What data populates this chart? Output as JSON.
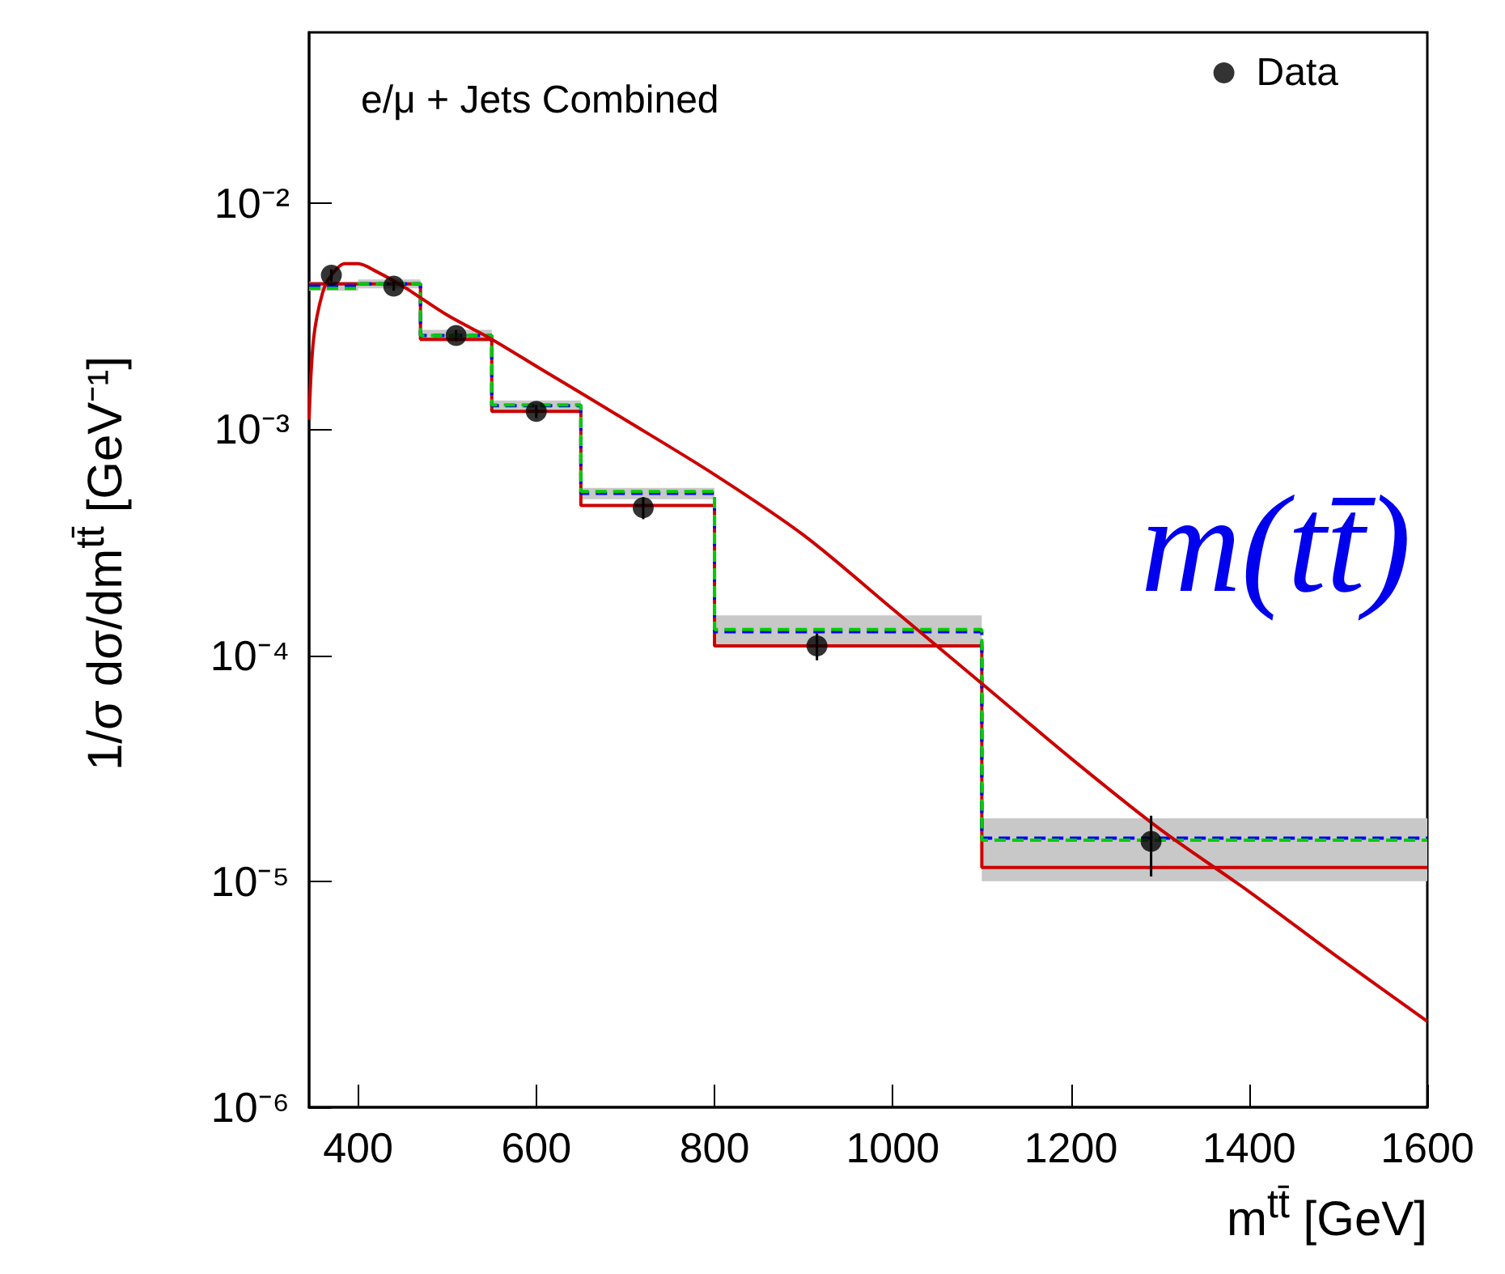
{
  "chart_data": {
    "type": "step",
    "xlabel": "m$^{tt̄}$ [GeV]",
    "ylabel": "1/σ dσ/dm$^{tt̄}$ [GeV⁻¹]",
    "annotations": [
      "e/μ + Jets Combined",
      "m(tt̄)"
    ],
    "log": "y",
    "grid": false,
    "legend": "top right",
    "xlim": [
      345,
      1600
    ],
    "xticks": [
      400,
      600,
      800,
      1000,
      1200,
      1400,
      1600
    ],
    "ylim": [
      1e-06,
      0.057
    ],
    "yticks": [
      {
        "value": 1e-06,
        "label": "10⁻⁶"
      },
      {
        "value": 1e-05,
        "label": "10⁻⁵"
      },
      {
        "value": 0.0001,
        "label": "10⁻⁴"
      },
      {
        "value": 0.001,
        "label": "10⁻³"
      },
      {
        "value": 0.01,
        "label": "10⁻²"
      }
    ],
    "series": [
      {
        "color": "#cc0000",
        "line_style": "solid",
        "x": [
          345,
          400,
          470,
          550,
          650,
          800,
          1100,
          1600
        ],
        "values": [
          0.0044,
          0.0044,
          0.0025,
          0.0012,
          0.00046,
          0.00011,
          1.15e-05,
          1.15e-05
        ]
      },
      {
        "color": "#0000ff",
        "line_style": "dashed",
        "x": [
          345,
          400,
          470,
          550,
          650,
          800,
          1100,
          1600
        ],
        "values": [
          0.0043,
          0.0044,
          0.0026,
          0.00127,
          0.00052,
          0.000127,
          1.55e-05,
          1.55e-05
        ],
        "lower": [
          0.0041,
          0.0042,
          0.00245,
          0.0012,
          0.00049,
          0.00011,
          1e-05,
          1e-05
        ],
        "upper": [
          0.0045,
          0.0046,
          0.00275,
          0.00134,
          0.00055,
          0.00015,
          1.9e-05,
          1.9e-05
        ]
      },
      {
        "color": "#00cc00",
        "line_style": "dashed",
        "x": [
          345,
          400,
          470,
          550,
          650,
          800,
          1100,
          1600
        ],
        "values": [
          0.0042,
          0.0044,
          0.0026,
          0.00128,
          0.00053,
          0.00013,
          1.52e-05,
          1.52e-05
        ]
      },
      {
        "type": "line",
        "color": "#cc0000",
        "line_style": "solid",
        "x": [
          345,
          350,
          360,
          370,
          385,
          400,
          420,
          450,
          500,
          550,
          600,
          700,
          800,
          900,
          1000,
          1100,
          1200,
          1300,
          1400,
          1500,
          1600
        ],
        "values": [
          0.0011,
          0.0025,
          0.004,
          0.0048,
          0.0054,
          0.0054,
          0.005,
          0.0043,
          0.0032,
          0.0025,
          0.0019,
          0.0011,
          0.00063,
          0.00034,
          0.00016,
          7.5e-05,
          3.5e-05,
          1.7e-05,
          9e-06,
          4.6e-06,
          2.4e-06
        ]
      },
      {
        "type": "scatter",
        "name": "Data",
        "color": "#000000",
        "marker": "circle",
        "x": [
          370,
          440,
          510,
          600,
          720,
          915,
          1290
        ],
        "values": [
          0.0048,
          0.0043,
          0.0026,
          0.0012,
          0.00045,
          0.00011,
          1.5e-05
        ],
        "errors": [
          0.0003,
          0.0002,
          0.00015,
          8e-05,
          5e-05,
          1.5e-05,
          4.5e-06
        ]
      }
    ]
  }
}
